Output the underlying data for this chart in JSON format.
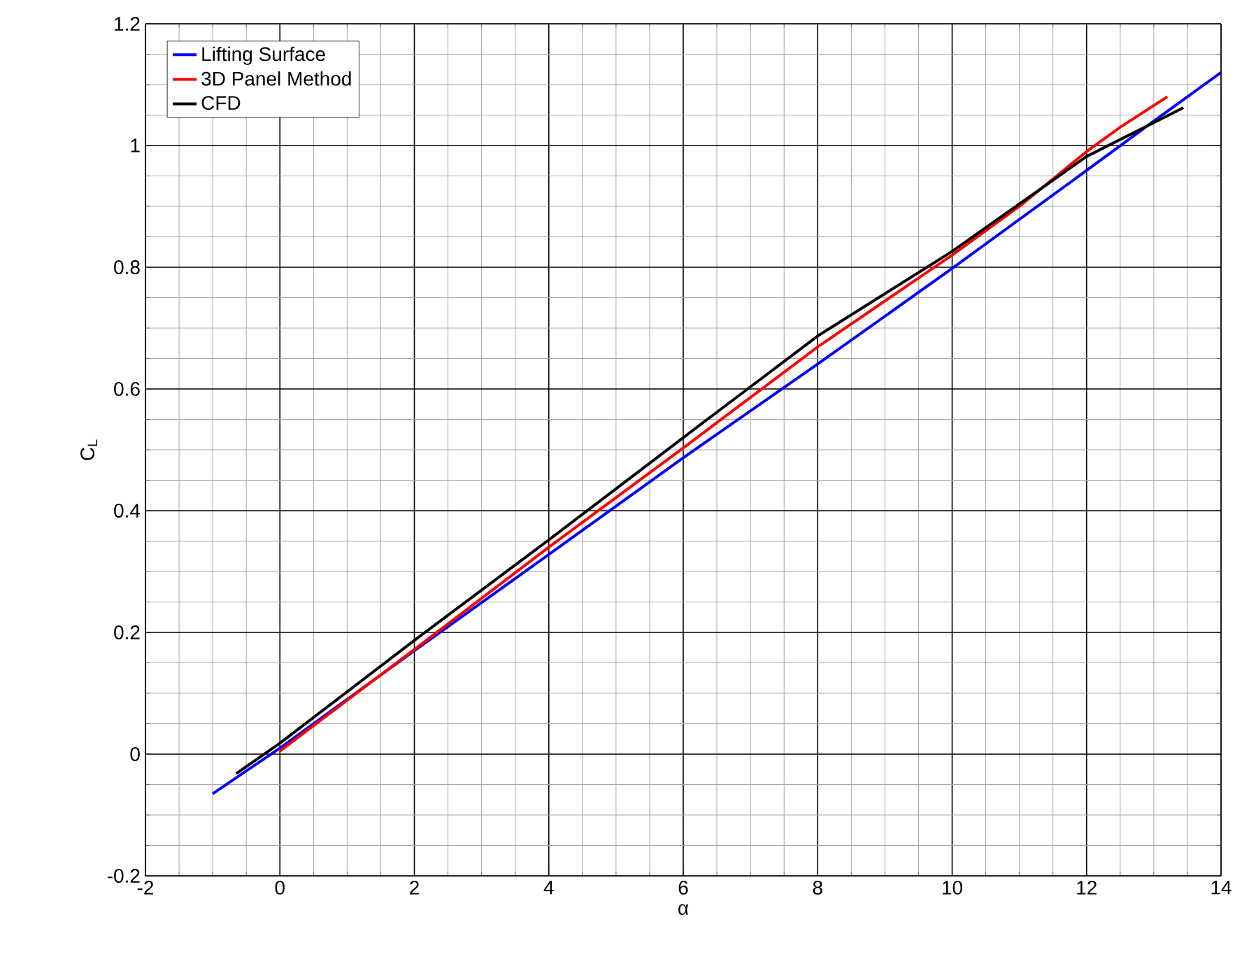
{
  "chart_data": {
    "type": "line",
    "xlabel": "α",
    "ylabel": "C$_{L}$",
    "xlim": [
      -2,
      14
    ],
    "ylim": [
      -0.2,
      1.2
    ],
    "xticks": [
      -2,
      0,
      2,
      4,
      6,
      8,
      10,
      12,
      14
    ],
    "yticks": [
      -0.2,
      0,
      0.2,
      0.4,
      0.6,
      0.8,
      1,
      1.2
    ],
    "grid": true,
    "legend": "top left",
    "line_style": "solid",
    "marker": "none",
    "series": [
      {
        "name": "Lifting Surface",
        "color": "#0000ff",
        "x": [
          -1,
          0,
          2,
          4,
          6,
          8,
          10,
          12,
          13,
          14
        ],
        "values": [
          -0.065,
          0.01,
          0.17,
          0.328,
          0.487,
          0.641,
          0.798,
          0.959,
          1.04,
          1.12
        ]
      },
      {
        "name": "3D Panel Method",
        "color": "#ff0000",
        "x": [
          0,
          2,
          4,
          6,
          8,
          10,
          11,
          12,
          12.5,
          13.2
        ],
        "values": [
          0.005,
          0.172,
          0.34,
          0.503,
          0.669,
          0.82,
          0.9,
          0.99,
          1.03,
          1.08
        ]
      },
      {
        "name": "CFD",
        "color": "#000000",
        "x": [
          -0.65,
          0,
          2,
          4,
          6,
          8,
          10,
          12,
          13.44
        ],
        "values": [
          -0.032,
          0.018,
          0.187,
          0.352,
          0.52,
          0.687,
          0.826,
          0.982,
          1.062
        ]
      }
    ]
  }
}
